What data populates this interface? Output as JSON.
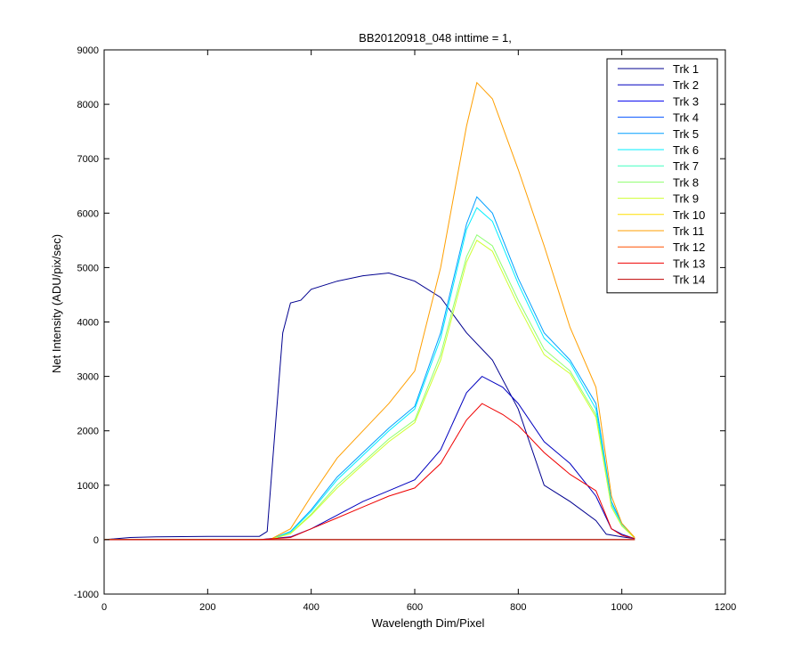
{
  "chart_data": {
    "type": "line",
    "title": "BB20120918_048 inttime = 1,",
    "xlabel": "Wavelength Dim/Pixel",
    "ylabel": "Net Intensity (ADU/pix/sec)",
    "xlim": [
      0,
      1200
    ],
    "ylim": [
      -1000,
      9000
    ],
    "xticks": [
      0,
      200,
      400,
      600,
      800,
      1000,
      1200
    ],
    "yticks": [
      -1000,
      0,
      1000,
      2000,
      3000,
      4000,
      5000,
      6000,
      7000,
      8000,
      9000
    ],
    "grid": false,
    "legend_position": "top-right",
    "series": [
      {
        "name": "Trk 1",
        "color": "#00008f",
        "x": [
          0,
          50,
          100,
          200,
          300,
          315,
          330,
          345,
          360,
          380,
          400,
          450,
          500,
          550,
          600,
          650,
          700,
          750,
          800,
          850,
          900,
          950,
          970,
          1000,
          1025
        ],
        "y": [
          0,
          40,
          50,
          60,
          60,
          150,
          2000,
          3800,
          4350,
          4400,
          4600,
          4750,
          4850,
          4900,
          4750,
          4450,
          3800,
          3300,
          2400,
          1000,
          700,
          350,
          100,
          50,
          20
        ]
      },
      {
        "name": "Trk 2",
        "color": "#0000bf",
        "x": [
          0,
          300,
          360,
          400,
          450,
          500,
          550,
          600,
          650,
          700,
          730,
          770,
          800,
          850,
          900,
          950,
          980,
          1000,
          1025
        ],
        "y": [
          0,
          0,
          50,
          200,
          450,
          700,
          900,
          1100,
          1650,
          2700,
          3000,
          2800,
          2500,
          1800,
          1400,
          800,
          200,
          100,
          20
        ]
      },
      {
        "name": "Trk 3",
        "color": "#0000ef",
        "x": [
          0,
          1025
        ],
        "y": [
          0,
          0
        ]
      },
      {
        "name": "Trk 4",
        "color": "#0050ff",
        "x": [
          0,
          1025
        ],
        "y": [
          0,
          0
        ]
      },
      {
        "name": "Trk 5",
        "color": "#009fff",
        "x": [
          0,
          320,
          360,
          400,
          450,
          500,
          550,
          600,
          650,
          700,
          720,
          750,
          800,
          850,
          900,
          950,
          980,
          1000,
          1025
        ],
        "y": [
          0,
          0,
          150,
          550,
          1150,
          1600,
          2050,
          2450,
          3800,
          5800,
          6300,
          6000,
          4800,
          3800,
          3300,
          2500,
          700,
          300,
          30
        ]
      },
      {
        "name": "Trk 6",
        "color": "#00efff",
        "x": [
          0,
          320,
          360,
          400,
          450,
          500,
          550,
          600,
          650,
          700,
          720,
          750,
          800,
          850,
          900,
          950,
          980,
          1000,
          1025
        ],
        "y": [
          0,
          0,
          140,
          520,
          1100,
          1550,
          2000,
          2400,
          3700,
          5700,
          6100,
          5850,
          4700,
          3700,
          3250,
          2400,
          650,
          280,
          30
        ]
      },
      {
        "name": "Trk 7",
        "color": "#40ffbf",
        "x": [
          0,
          1025
        ],
        "y": [
          0,
          0
        ]
      },
      {
        "name": "Trk 8",
        "color": "#8fff70",
        "x": [
          0,
          320,
          360,
          400,
          450,
          500,
          550,
          600,
          650,
          700,
          720,
          750,
          800,
          850,
          900,
          950,
          980,
          1000,
          1025
        ],
        "y": [
          0,
          0,
          120,
          470,
          1000,
          1420,
          1850,
          2200,
          3400,
          5200,
          5600,
          5400,
          4400,
          3500,
          3100,
          2300,
          600,
          250,
          30
        ]
      },
      {
        "name": "Trk 9",
        "color": "#cfff30",
        "x": [
          0,
          320,
          360,
          400,
          450,
          500,
          550,
          600,
          650,
          700,
          720,
          750,
          800,
          850,
          900,
          950,
          980,
          1000,
          1025
        ],
        "y": [
          0,
          0,
          110,
          450,
          950,
          1380,
          1800,
          2150,
          3300,
          5100,
          5500,
          5300,
          4300,
          3400,
          3050,
          2250,
          600,
          250,
          30
        ]
      },
      {
        "name": "Trk 10",
        "color": "#ffdf00",
        "x": [
          0,
          1025
        ],
        "y": [
          0,
          0
        ]
      },
      {
        "name": "Trk 11",
        "color": "#ff9f00",
        "x": [
          0,
          320,
          360,
          400,
          450,
          500,
          550,
          600,
          650,
          700,
          720,
          750,
          800,
          850,
          900,
          950,
          980,
          1000,
          1025
        ],
        "y": [
          0,
          0,
          200,
          800,
          1500,
          2000,
          2500,
          3100,
          5000,
          7600,
          8400,
          8100,
          6800,
          5400,
          3900,
          2800,
          800,
          300,
          40
        ]
      },
      {
        "name": "Trk 12",
        "color": "#ff5000",
        "x": [
          0,
          1025
        ],
        "y": [
          0,
          0
        ]
      },
      {
        "name": "Trk 13",
        "color": "#ef0000",
        "x": [
          0,
          300,
          360,
          400,
          450,
          500,
          550,
          600,
          650,
          700,
          730,
          770,
          800,
          850,
          900,
          950,
          980,
          1000,
          1025
        ],
        "y": [
          0,
          0,
          40,
          200,
          400,
          600,
          800,
          950,
          1400,
          2200,
          2500,
          2300,
          2100,
          1600,
          1200,
          900,
          200,
          80,
          20
        ]
      },
      {
        "name": "Trk 14",
        "color": "#bf0000",
        "x": [
          0,
          1025
        ],
        "y": [
          0,
          0
        ]
      }
    ]
  }
}
